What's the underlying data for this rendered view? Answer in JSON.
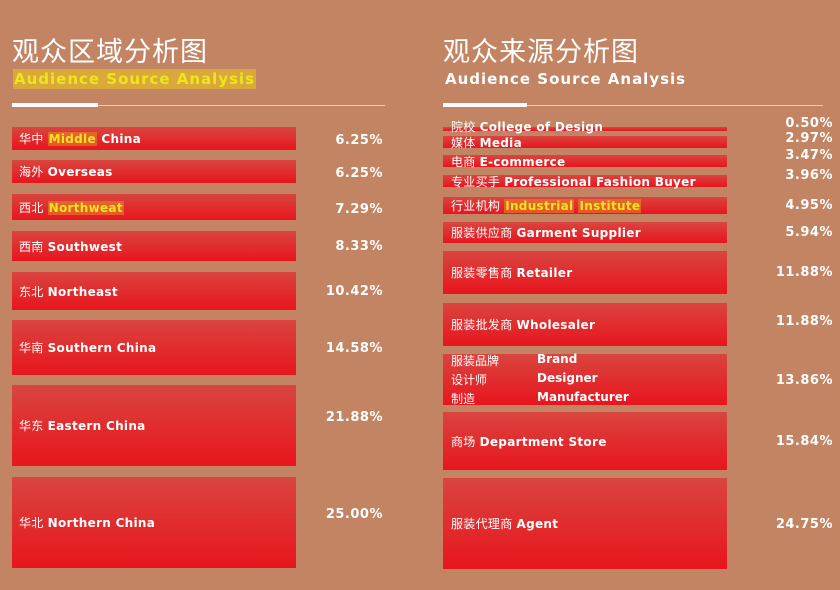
{
  "left": {
    "title_cn": "观众区域分析图",
    "title_en": "Audience Source Analysis",
    "bars": [
      {
        "cn": "华中",
        "en": "Middle",
        "en2": " China",
        "pct": "6.25%",
        "value": 6.25,
        "top": 127,
        "h": 23
      },
      {
        "cn": "海外",
        "en": "",
        "en2": "Overseas",
        "pct": "6.25%",
        "value": 6.25,
        "top": 160,
        "h": 23
      },
      {
        "cn": "西北",
        "en": "Northweat",
        "en2": "",
        "pct": "7.29%",
        "value": 7.29,
        "top": 194,
        "h": 26
      },
      {
        "cn": "西南",
        "en": "",
        "en2": "Southwest",
        "pct": "8.33%",
        "value": 8.33,
        "top": 231,
        "h": 30
      },
      {
        "cn": "东北",
        "en": "",
        "en2": "Northeast",
        "pct": "10.42%",
        "value": 10.42,
        "top": 272,
        "h": 38
      },
      {
        "cn": "华南",
        "en": "",
        "en2": "Southern China",
        "pct": "14.58%",
        "value": 14.58,
        "top": 320,
        "h": 55
      },
      {
        "cn": "华东",
        "en": "",
        "en2": "Eastern China",
        "pct": "21.88%",
        "value": 21.88,
        "top": 385,
        "h": 81
      },
      {
        "cn": "华北",
        "en": "",
        "en2": "Northern China",
        "pct": "25.00%",
        "value": 25.0,
        "top": 477,
        "h": 91
      }
    ]
  },
  "right": {
    "title_cn": "观众来源分析图",
    "title_en": "Audience Source Analysis",
    "bars": [
      {
        "cn": "院校",
        "en": "",
        "en2": "College of Design",
        "pct": "0.50%",
        "value": 0.5
      },
      {
        "cn": "媒体",
        "en": "",
        "en2": "Media",
        "pct": "2.97%",
        "value": 2.97
      },
      {
        "cn": "电商",
        "en": "",
        "en2": "E-commerce",
        "pct": "3.47%",
        "value": 3.47
      },
      {
        "cn": "专业买手",
        "en": "",
        "en2": "Professional Fashion Buyer",
        "pct": "3.96%",
        "value": 3.96
      },
      {
        "cn": "行业机构",
        "en": "Industrial",
        "en2": "Institute",
        "pct": "4.95%",
        "value": 4.95
      },
      {
        "cn": "服装供应商",
        "en": "",
        "en2": "Garment Supplier",
        "pct": "5.94%",
        "value": 5.94
      },
      {
        "cn": "服装零售商",
        "en": "",
        "en2": "Retailer",
        "pct": "11.88%",
        "value": 11.88
      },
      {
        "cn": "服装批发商",
        "en": "",
        "en2": "Wholesaler",
        "pct": "11.88%",
        "value": 11.88
      },
      {
        "cn": "",
        "en": "",
        "en2": "",
        "pct": "13.86%",
        "value": 13.86,
        "multi": [
          {
            "cn": "服装品牌",
            "en": "Brand"
          },
          {
            "cn": "设计师",
            "en": "Designer"
          },
          {
            "cn": "制造",
            "en": "Manufacturer"
          }
        ]
      },
      {
        "cn": "商场",
        "en": "",
        "en2": "Department Store",
        "pct": "15.84%",
        "value": 15.84
      },
      {
        "cn": "服装代理商",
        "en": "",
        "en2": "Agent",
        "pct": "24.75%",
        "value": 24.75
      }
    ]
  },
  "colors": {
    "background": "#c28463",
    "bar_top": "#d9453f",
    "bar_bottom": "#e8151e",
    "highlight": "#f1e81a"
  }
}
